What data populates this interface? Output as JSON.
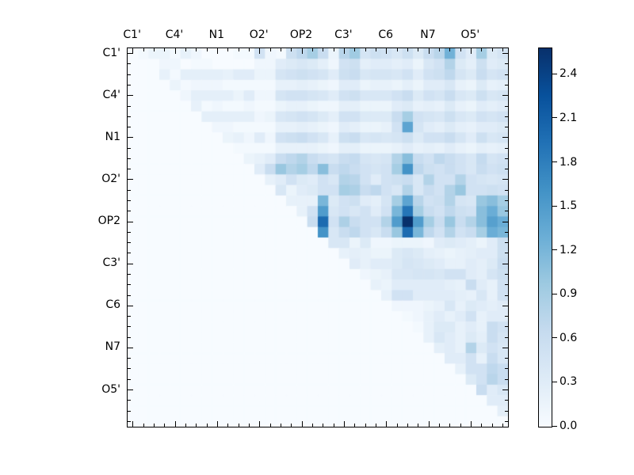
{
  "figure": {
    "background": "#ffffff"
  },
  "colors": {
    "axis": "#000000",
    "text": "#000000",
    "blues_anchors": [
      "#f7fbff",
      "#deebf7",
      "#c6dbef",
      "#9ecae1",
      "#6baed6",
      "#4292c6",
      "#2171b5",
      "#08519c",
      "#08306b"
    ]
  },
  "chart_data": {
    "type": "heatmap",
    "title": "",
    "colormap": "Blues",
    "n": 36,
    "vmin": 0.0,
    "vmax": 2.58,
    "tick_label_every": 4,
    "x_tick_labels": [
      "C1'",
      "C4'",
      "N1",
      "O2'",
      "OP2",
      "C3'",
      "C6",
      "N7",
      "O5'"
    ],
    "y_tick_labels": [
      "C1'",
      "C4'",
      "N1",
      "O2'",
      "OP2",
      "C3'",
      "C6",
      "N7",
      "O5'"
    ],
    "colorbar": {
      "tick_labels": [
        "0.0",
        "0.3",
        "0.6",
        "0.9",
        "1.2",
        "1.5",
        "1.8",
        "2.1",
        "2.4"
      ],
      "tick_values": [
        0.0,
        0.3,
        0.6,
        0.9,
        1.2,
        1.5,
        1.8,
        2.1,
        2.4
      ]
    },
    "matrix": [
      [
        0,
        0.05,
        0.15,
        0.15,
        0.05,
        0.2,
        0.1,
        0,
        0,
        0,
        0.05,
        0.05,
        0.5,
        0.1,
        0.05,
        0.55,
        0.7,
        0.9,
        0.6,
        0.15,
        0.75,
        0.95,
        0.45,
        0.55,
        0.5,
        0.4,
        0.55,
        0.35,
        0.6,
        0.75,
        1.25,
        0.5,
        0.3,
        0.9,
        0.35,
        0.45
      ],
      [
        0,
        0,
        0,
        0.1,
        0.1,
        0,
        0.05,
        0.05,
        0,
        0,
        0,
        0,
        0.1,
        0.1,
        0.3,
        0.35,
        0.4,
        0.35,
        0.25,
        0.1,
        0.5,
        0.55,
        0.25,
        0.3,
        0.3,
        0.25,
        0.3,
        0.15,
        0.4,
        0.5,
        0.8,
        0.35,
        0.25,
        0.55,
        0.3,
        0.35
      ],
      [
        0,
        0,
        0,
        0.2,
        0.05,
        0.25,
        0.25,
        0.25,
        0.25,
        0.2,
        0.3,
        0.3,
        0.15,
        0.15,
        0.45,
        0.5,
        0.55,
        0.5,
        0.45,
        0.3,
        0.55,
        0.6,
        0.4,
        0.45,
        0.45,
        0.4,
        0.5,
        0.3,
        0.5,
        0.55,
        0.7,
        0.45,
        0.35,
        0.6,
        0.45,
        0.5
      ],
      [
        0,
        0,
        0,
        0,
        0.15,
        0.05,
        0.1,
        0.1,
        0.1,
        0.05,
        0.05,
        0.05,
        0.05,
        0.05,
        0.2,
        0.2,
        0.25,
        0.2,
        0.15,
        0.1,
        0.3,
        0.3,
        0.15,
        0.2,
        0.2,
        0.15,
        0.25,
        0.15,
        0.3,
        0.3,
        0.4,
        0.2,
        0.15,
        0.35,
        0.2,
        0.25
      ],
      [
        0,
        0,
        0,
        0,
        0,
        0.1,
        0.25,
        0.25,
        0.25,
        0.25,
        0.15,
        0.3,
        0.1,
        0.1,
        0.45,
        0.5,
        0.5,
        0.45,
        0.4,
        0.3,
        0.5,
        0.55,
        0.4,
        0.4,
        0.4,
        0.5,
        0.6,
        0.35,
        0.5,
        0.45,
        0.6,
        0.4,
        0.35,
        0.55,
        0.4,
        0.45
      ],
      [
        0,
        0,
        0,
        0,
        0,
        0,
        0.2,
        0.05,
        0.1,
        0.05,
        0.05,
        0.1,
        0.05,
        0.05,
        0.15,
        0.2,
        0.2,
        0.15,
        0.1,
        0.1,
        0.25,
        0.25,
        0.15,
        0.15,
        0.15,
        0.3,
        0.35,
        0.2,
        0.25,
        0.2,
        0.35,
        0.2,
        0.15,
        0.3,
        0.25,
        0.3
      ],
      [
        0,
        0,
        0,
        0,
        0,
        0,
        0,
        0.25,
        0.25,
        0.25,
        0.25,
        0.25,
        0.1,
        0.15,
        0.4,
        0.45,
        0.5,
        0.45,
        0.35,
        0.25,
        0.5,
        0.5,
        0.35,
        0.35,
        0.35,
        0.6,
        0.9,
        0.5,
        0.45,
        0.4,
        0.55,
        0.4,
        0.35,
        0.5,
        0.45,
        0.5
      ],
      [
        0,
        0,
        0,
        0,
        0,
        0,
        0,
        0,
        0.1,
        0.1,
        0.05,
        0.05,
        0.05,
        0.05,
        0.2,
        0.2,
        0.25,
        0.2,
        0.15,
        0.1,
        0.3,
        0.25,
        0.15,
        0.15,
        0.2,
        0.5,
        1.4,
        0.45,
        0.3,
        0.25,
        0.35,
        0.25,
        0.2,
        0.3,
        0.3,
        0.35
      ],
      [
        0,
        0,
        0,
        0,
        0,
        0,
        0,
        0,
        0,
        0.15,
        0.2,
        0.1,
        0.3,
        0.1,
        0.5,
        0.55,
        0.6,
        0.5,
        0.4,
        0.2,
        0.55,
        0.6,
        0.4,
        0.45,
        0.4,
        0.45,
        0.55,
        0.35,
        0.5,
        0.5,
        0.6,
        0.45,
        0.3,
        0.55,
        0.4,
        0.45
      ],
      [
        0,
        0,
        0,
        0,
        0,
        0,
        0,
        0,
        0,
        0,
        0.05,
        0.05,
        0.05,
        0.05,
        0.2,
        0.2,
        0.2,
        0.2,
        0.15,
        0.1,
        0.25,
        0.25,
        0.15,
        0.15,
        0.15,
        0.2,
        0.3,
        0.2,
        0.25,
        0.2,
        0.3,
        0.2,
        0.15,
        0.25,
        0.2,
        0.25
      ],
      [
        0,
        0,
        0,
        0,
        0,
        0,
        0,
        0,
        0,
        0,
        0,
        0.15,
        0.2,
        0.3,
        0.6,
        0.7,
        0.8,
        0.6,
        0.5,
        0.45,
        0.6,
        0.65,
        0.45,
        0.4,
        0.45,
        0.8,
        1.1,
        0.6,
        0.5,
        0.7,
        0.6,
        0.5,
        0.4,
        0.65,
        0.45,
        0.5
      ],
      [
        0,
        0,
        0,
        0,
        0,
        0,
        0,
        0,
        0,
        0,
        0,
        0,
        0.3,
        0.6,
        1.0,
        0.8,
        0.9,
        0.7,
        1.1,
        0.6,
        0.7,
        0.6,
        0.5,
        0.45,
        0.5,
        0.9,
        1.6,
        0.7,
        0.55,
        0.5,
        0.6,
        0.5,
        0.4,
        0.6,
        0.5,
        0.55
      ],
      [
        0,
        0,
        0,
        0,
        0,
        0,
        0,
        0,
        0,
        0,
        0,
        0,
        0,
        0.2,
        0.3,
        0.5,
        0.35,
        0.3,
        0.5,
        0.4,
        0.8,
        0.75,
        0.5,
        0.3,
        0.5,
        0.55,
        0.6,
        0.4,
        0.8,
        0.5,
        0.5,
        0.8,
        0.5,
        0.45,
        0.4,
        0.45
      ],
      [
        0,
        0,
        0,
        0,
        0,
        0,
        0,
        0,
        0,
        0,
        0,
        0,
        0,
        0,
        0.4,
        0.15,
        0.3,
        0.35,
        0.5,
        0.5,
        0.9,
        0.85,
        0.6,
        0.7,
        0.5,
        0.4,
        0.8,
        0.4,
        0.6,
        0.5,
        0.8,
        1.0,
        0.5,
        0.5,
        0.55,
        0.5
      ],
      [
        0,
        0,
        0,
        0,
        0,
        0,
        0,
        0,
        0,
        0,
        0,
        0,
        0,
        0,
        0,
        0.2,
        0.2,
        0.2,
        1.2,
        0.35,
        0.5,
        0.55,
        0.3,
        0.25,
        0.45,
        0.9,
        1.4,
        0.75,
        0.5,
        0.55,
        0.8,
        0.45,
        0.4,
        1.0,
        1.1,
        0.9
      ],
      [
        0,
        0,
        0,
        0,
        0,
        0,
        0,
        0,
        0,
        0,
        0,
        0,
        0,
        0,
        0,
        0,
        0.2,
        0.5,
        1.5,
        0.4,
        0.5,
        0.4,
        0.5,
        0.3,
        0.5,
        1.2,
        1.9,
        0.9,
        0.6,
        0.5,
        0.7,
        0.55,
        0.5,
        1.1,
        1.3,
        1.0
      ],
      [
        0,
        0,
        0,
        0,
        0,
        0,
        0,
        0,
        0,
        0,
        0,
        0,
        0,
        0,
        0,
        0,
        0,
        0.6,
        2.0,
        0.5,
        0.85,
        0.6,
        0.5,
        0.5,
        0.8,
        1.5,
        2.58,
        1.5,
        0.9,
        0.6,
        1.0,
        0.6,
        0.8,
        1.1,
        1.45,
        1.3
      ],
      [
        0,
        0,
        0,
        0,
        0,
        0,
        0,
        0,
        0,
        0,
        0,
        0,
        0,
        0,
        0,
        0,
        0,
        0,
        1.6,
        0.4,
        0.6,
        0.7,
        0.5,
        0.4,
        0.6,
        1.0,
        2.0,
        1.2,
        0.7,
        0.5,
        0.8,
        0.5,
        0.6,
        0.9,
        1.3,
        1.2
      ],
      [
        0,
        0,
        0,
        0,
        0,
        0,
        0,
        0,
        0,
        0,
        0,
        0,
        0,
        0,
        0,
        0,
        0,
        0,
        0,
        0.4,
        0.4,
        0.15,
        0.35,
        0.1,
        0.1,
        0.15,
        0.15,
        0.15,
        0.1,
        0.3,
        0.35,
        0.3,
        0.25,
        0.15,
        0.3,
        0.55
      ],
      [
        0,
        0,
        0,
        0,
        0,
        0,
        0,
        0,
        0,
        0,
        0,
        0,
        0,
        0,
        0,
        0,
        0,
        0,
        0,
        0,
        0.2,
        0.25,
        0.2,
        0.15,
        0.15,
        0.35,
        0.4,
        0.35,
        0.25,
        0.2,
        0.15,
        0.2,
        0.25,
        0.3,
        0.3,
        0.55
      ],
      [
        0,
        0,
        0,
        0,
        0,
        0,
        0,
        0,
        0,
        0,
        0,
        0,
        0,
        0,
        0,
        0,
        0,
        0,
        0,
        0,
        0,
        0.3,
        0.2,
        0.3,
        0.3,
        0.35,
        0.45,
        0.4,
        0.35,
        0.3,
        0.2,
        0.2,
        0.3,
        0.25,
        0.35,
        0.6
      ],
      [
        0,
        0,
        0,
        0,
        0,
        0,
        0,
        0,
        0,
        0,
        0,
        0,
        0,
        0,
        0,
        0,
        0,
        0,
        0,
        0,
        0,
        0,
        0.1,
        0.15,
        0.2,
        0.4,
        0.4,
        0.45,
        0.45,
        0.4,
        0.5,
        0.5,
        0.3,
        0.25,
        0.45,
        0.55
      ],
      [
        0,
        0,
        0,
        0,
        0,
        0,
        0,
        0,
        0,
        0,
        0,
        0,
        0,
        0,
        0,
        0,
        0,
        0,
        0,
        0,
        0,
        0,
        0,
        0.2,
        0.15,
        0.3,
        0.3,
        0.3,
        0.3,
        0.3,
        0.25,
        0.2,
        0.6,
        0.3,
        0.2,
        0.5
      ],
      [
        0,
        0,
        0,
        0,
        0,
        0,
        0,
        0,
        0,
        0,
        0,
        0,
        0,
        0,
        0,
        0,
        0,
        0,
        0,
        0,
        0,
        0,
        0,
        0,
        0.2,
        0.5,
        0.5,
        0.3,
        0.3,
        0.3,
        0.3,
        0.25,
        0.2,
        0.4,
        0.2,
        0.5
      ],
      [
        0,
        0,
        0,
        0,
        0,
        0,
        0,
        0,
        0,
        0,
        0,
        0,
        0,
        0,
        0,
        0,
        0,
        0,
        0,
        0,
        0,
        0,
        0,
        0,
        0,
        0.1,
        0.1,
        0.1,
        0.15,
        0.2,
        0.4,
        0.2,
        0.35,
        0.3,
        0.25,
        0.3
      ],
      [
        0,
        0,
        0,
        0,
        0,
        0,
        0,
        0,
        0,
        0,
        0,
        0,
        0,
        0,
        0,
        0,
        0,
        0,
        0,
        0,
        0,
        0,
        0,
        0,
        0,
        0,
        0.05,
        0.1,
        0.2,
        0.3,
        0.2,
        0.3,
        0.5,
        0.2,
        0.3,
        0.3
      ],
      [
        0,
        0,
        0,
        0,
        0,
        0,
        0,
        0,
        0,
        0,
        0,
        0,
        0,
        0,
        0,
        0,
        0,
        0,
        0,
        0,
        0,
        0,
        0,
        0,
        0,
        0,
        0,
        0.05,
        0.2,
        0.35,
        0.35,
        0.2,
        0.3,
        0.2,
        0.6,
        0.5
      ],
      [
        0,
        0,
        0,
        0,
        0,
        0,
        0,
        0,
        0,
        0,
        0,
        0,
        0,
        0,
        0,
        0,
        0,
        0,
        0,
        0,
        0,
        0,
        0,
        0,
        0,
        0,
        0,
        0,
        0.2,
        0.4,
        0.3,
        0.2,
        0.35,
        0.25,
        0.6,
        0.45
      ],
      [
        0,
        0,
        0,
        0,
        0,
        0,
        0,
        0,
        0,
        0,
        0,
        0,
        0,
        0,
        0,
        0,
        0,
        0,
        0,
        0,
        0,
        0,
        0,
        0,
        0,
        0,
        0,
        0,
        0,
        0.25,
        0.3,
        0.2,
        0.8,
        0.35,
        0.5,
        0.4
      ],
      [
        0,
        0,
        0,
        0,
        0,
        0,
        0,
        0,
        0,
        0,
        0,
        0,
        0,
        0,
        0,
        0,
        0,
        0,
        0,
        0,
        0,
        0,
        0,
        0,
        0,
        0,
        0,
        0,
        0,
        0,
        0.3,
        0.3,
        0.5,
        0.2,
        0.6,
        0.4
      ],
      [
        0,
        0,
        0,
        0,
        0,
        0,
        0,
        0,
        0,
        0,
        0,
        0,
        0,
        0,
        0,
        0,
        0,
        0,
        0,
        0,
        0,
        0,
        0,
        0,
        0,
        0,
        0,
        0,
        0,
        0,
        0,
        0.2,
        0.5,
        0.5,
        0.7,
        0.6
      ],
      [
        0,
        0,
        0,
        0,
        0,
        0,
        0,
        0,
        0,
        0,
        0,
        0,
        0,
        0,
        0,
        0,
        0,
        0,
        0,
        0,
        0,
        0,
        0,
        0,
        0,
        0,
        0,
        0,
        0,
        0,
        0,
        0,
        0.35,
        0.5,
        0.75,
        0.6
      ],
      [
        0,
        0,
        0,
        0,
        0,
        0,
        0,
        0,
        0,
        0,
        0,
        0,
        0,
        0,
        0,
        0,
        0,
        0,
        0,
        0,
        0,
        0,
        0,
        0,
        0,
        0,
        0,
        0,
        0,
        0,
        0,
        0,
        0,
        0.6,
        0.3,
        0.4
      ],
      [
        0,
        0,
        0,
        0,
        0,
        0,
        0,
        0,
        0,
        0,
        0,
        0,
        0,
        0,
        0,
        0,
        0,
        0,
        0,
        0,
        0,
        0,
        0,
        0,
        0,
        0,
        0,
        0,
        0,
        0,
        0,
        0,
        0,
        0,
        0.3,
        0.3
      ],
      [
        0,
        0,
        0,
        0,
        0,
        0,
        0,
        0,
        0,
        0,
        0,
        0,
        0,
        0,
        0,
        0,
        0,
        0,
        0,
        0,
        0,
        0,
        0,
        0,
        0,
        0,
        0,
        0,
        0,
        0,
        0,
        0,
        0,
        0,
        0,
        0.25
      ],
      [
        0,
        0,
        0,
        0,
        0,
        0,
        0,
        0,
        0,
        0,
        0,
        0,
        0,
        0,
        0,
        0,
        0,
        0,
        0,
        0,
        0,
        0,
        0,
        0,
        0,
        0,
        0,
        0,
        0,
        0,
        0,
        0,
        0,
        0,
        0,
        0
      ]
    ]
  }
}
